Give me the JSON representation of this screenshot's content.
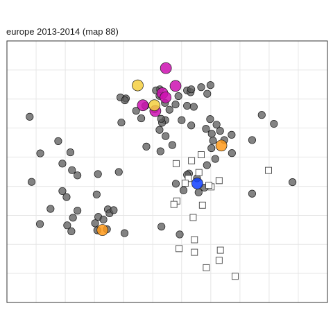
{
  "chart_data": {
    "type": "scatter",
    "title": "europe 2013-2014  (map 88)",
    "xlabel": "",
    "ylabel": "",
    "xlim": [
      0,
      100
    ],
    "ylim": [
      0,
      100
    ],
    "grid": true,
    "axis_ticks_shown": false,
    "legend": "none",
    "colors": {
      "panel_border": "#333333",
      "grid": "#e6e6e6",
      "grey_fill": "#5a5a5a",
      "magenta_fill": "#cc10b0",
      "yellow_fill": "#f5cf40",
      "orange_fill": "#ff9a1a",
      "blue_fill": "#1040ff",
      "square_stroke": "#444444"
    },
    "series": [
      {
        "marker": "circle",
        "style": "grey",
        "points": [
          [
            7.1,
            71
          ],
          [
            16,
            61.7
          ],
          [
            17.3,
            53.1
          ],
          [
            19.8,
            57.4
          ],
          [
            10.4,
            57
          ],
          [
            22,
            48.6
          ],
          [
            20.3,
            50.6
          ],
          [
            28.4,
            49.1
          ],
          [
            34.9,
            49.9
          ],
          [
            7.7,
            46.1
          ],
          [
            17.3,
            42.6
          ],
          [
            13.6,
            35.8
          ],
          [
            18.6,
            40.3
          ],
          [
            22,
            35.1
          ],
          [
            18.8,
            29.5
          ],
          [
            20.6,
            32.4
          ],
          [
            28,
            41.3
          ],
          [
            28.5,
            32.7
          ],
          [
            31.5,
            35.6
          ],
          [
            32,
            34.1
          ],
          [
            33.3,
            35.3
          ],
          [
            27.5,
            30.3
          ],
          [
            20.1,
            27.2
          ],
          [
            31.2,
            28
          ],
          [
            36.7,
            26.5
          ],
          [
            30.1,
            31.7
          ],
          [
            28.2,
            27.6
          ],
          [
            10.3,
            30
          ],
          [
            48.2,
            29
          ],
          [
            53.9,
            26
          ],
          [
            51.6,
            60.2
          ],
          [
            56.8,
            49.3
          ],
          [
            52.7,
            45.4
          ],
          [
            55.1,
            42.9
          ],
          [
            56.2,
            48.8
          ],
          [
            59.3,
            47.5
          ],
          [
            59.8,
            42.1
          ],
          [
            61.6,
            43.9
          ],
          [
            62.4,
            52.5
          ],
          [
            65,
            54.9
          ],
          [
            62.1,
            66.4
          ],
          [
            63.4,
            70.1
          ],
          [
            65.4,
            68
          ],
          [
            66.5,
            65.6
          ],
          [
            63.9,
            64.5
          ],
          [
            70.1,
            64.1
          ],
          [
            70.2,
            57.1
          ],
          [
            67.8,
            62.1
          ],
          [
            63.8,
            59
          ],
          [
            64.3,
            61.9
          ],
          [
            76.5,
            62.1
          ],
          [
            79.5,
            71.7
          ],
          [
            83.3,
            68.3
          ],
          [
            89.1,
            46
          ],
          [
            76.5,
            41.6
          ],
          [
            37.1,
            78
          ],
          [
            35.7,
            68.8
          ],
          [
            35.4,
            78.4
          ],
          [
            36.8,
            77.3
          ],
          [
            40.3,
            73.3
          ],
          [
            41.9,
            70.4
          ],
          [
            43.2,
            75.2
          ],
          [
            46.1,
            73.9
          ],
          [
            47.7,
            81.5
          ],
          [
            47.6,
            79
          ],
          [
            49.3,
            76.3
          ],
          [
            50.7,
            73.7
          ],
          [
            49.4,
            69.7
          ],
          [
            47.6,
            66
          ],
          [
            48.4,
            68.7
          ],
          [
            52.6,
            75.7
          ],
          [
            48.1,
            70.2
          ],
          [
            46.5,
            81.1
          ],
          [
            53.5,
            78.9
          ],
          [
            56.2,
            81.1
          ],
          [
            56.2,
            75.2
          ],
          [
            54.5,
            69.7
          ],
          [
            57.5,
            67.7
          ],
          [
            58.3,
            74.8
          ],
          [
            63.5,
            83.1
          ],
          [
            62.5,
            79.8
          ],
          [
            60.6,
            82.3
          ],
          [
            57.3,
            80.4
          ],
          [
            43.5,
            59.6
          ],
          [
            47.9,
            57.8
          ],
          [
            49.5,
            63.6
          ],
          [
            57.5,
            81.5
          ]
        ]
      },
      {
        "marker": "circle",
        "style": "magenta",
        "points": [
          [
            49.6,
            89.6
          ],
          [
            48.5,
            80
          ],
          [
            52.6,
            82.8
          ],
          [
            42.4,
            75.4
          ],
          [
            46.3,
            73.2
          ],
          [
            49.5,
            78.4
          ]
        ]
      },
      {
        "marker": "circle",
        "style": "yellow",
        "points": [
          [
            40.8,
            83
          ],
          [
            46,
            75.4
          ]
        ]
      },
      {
        "marker": "circle",
        "style": "orange",
        "points": [
          [
            66.9,
            60
          ],
          [
            29.8,
            27.7
          ]
        ]
      },
      {
        "marker": "circle",
        "style": "blue",
        "points": [
          [
            59.4,
            45.5
          ]
        ]
      },
      {
        "marker": "square",
        "style": "open",
        "points": [
          [
            52.8,
            53.1
          ],
          [
            57.6,
            54.2
          ],
          [
            60.6,
            56.5
          ],
          [
            59.9,
            49.7
          ],
          [
            56.6,
            47.4
          ],
          [
            55.6,
            45.6
          ],
          [
            63.7,
            44.2
          ],
          [
            66.2,
            46.6
          ],
          [
            63,
            44.8
          ],
          [
            81.6,
            50.5
          ],
          [
            53,
            38.8
          ],
          [
            52.1,
            37.5
          ],
          [
            61,
            37.2
          ],
          [
            58.1,
            32.5
          ],
          [
            58.5,
            24
          ],
          [
            53.7,
            20.6
          ],
          [
            58.5,
            19.2
          ],
          [
            66.2,
            16.1
          ],
          [
            66.6,
            20
          ],
          [
            62.2,
            13.3
          ],
          [
            71.2,
            10
          ]
        ]
      }
    ]
  }
}
